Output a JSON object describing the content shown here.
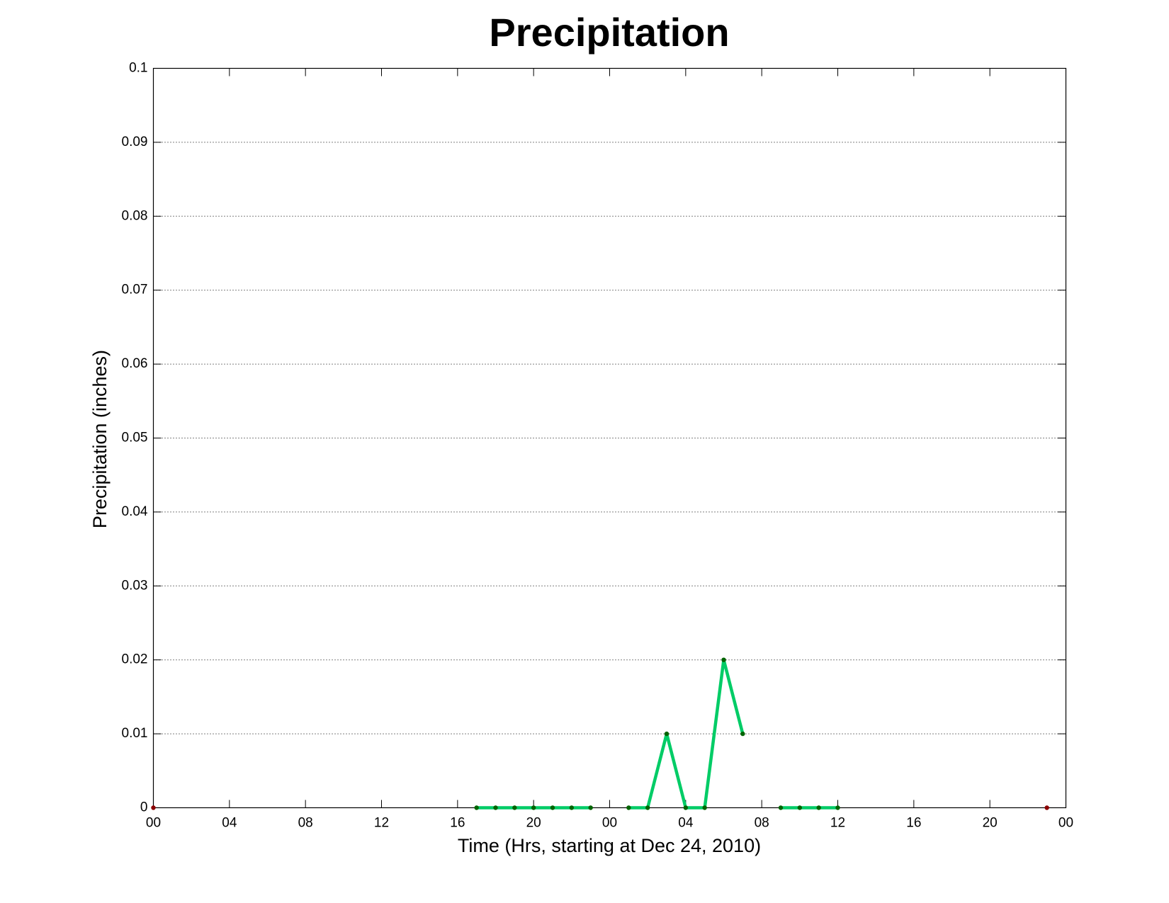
{
  "chart_data": {
    "type": "line",
    "title": "Precipitation",
    "x_label": "Time (Hrs, starting at Dec 24, 2010)",
    "y_label": "Precipitation (inches)",
    "xlim": [
      0,
      48
    ],
    "ylim": [
      0,
      0.1
    ],
    "xticks": [
      {
        "value": 0,
        "label": "00"
      },
      {
        "value": 4,
        "label": "04"
      },
      {
        "value": 8,
        "label": "08"
      },
      {
        "value": 12,
        "label": "12"
      },
      {
        "value": 16,
        "label": "16"
      },
      {
        "value": 20,
        "label": "20"
      },
      {
        "value": 24,
        "label": "00"
      },
      {
        "value": 28,
        "label": "04"
      },
      {
        "value": 32,
        "label": "08"
      },
      {
        "value": 36,
        "label": "12"
      },
      {
        "value": 40,
        "label": "16"
      },
      {
        "value": 44,
        "label": "20"
      },
      {
        "value": 48,
        "label": "00"
      }
    ],
    "yticks": [
      0,
      0.01,
      0.02,
      0.03,
      0.04,
      0.05,
      0.06,
      0.07,
      0.08,
      0.09,
      0.1
    ],
    "grid": true,
    "series": [
      {
        "color": "#00cc66",
        "marker_color": "#006400",
        "line": true,
        "x": [
          17,
          18,
          19,
          20,
          21,
          22,
          23,
          24,
          25,
          26,
          27,
          28,
          29,
          30,
          31,
          32,
          33,
          34,
          35,
          36
        ],
        "values": [
          0,
          0,
          0,
          0,
          0,
          0,
          0,
          null,
          0,
          0,
          0.01,
          0,
          0,
          0.02,
          0.01,
          null,
          0,
          0,
          0,
          0
        ]
      },
      {
        "color": "#8b0000",
        "marker_color": "#8b0000",
        "line": false,
        "x": [
          0,
          47
        ],
        "values": [
          0,
          0
        ]
      }
    ]
  }
}
